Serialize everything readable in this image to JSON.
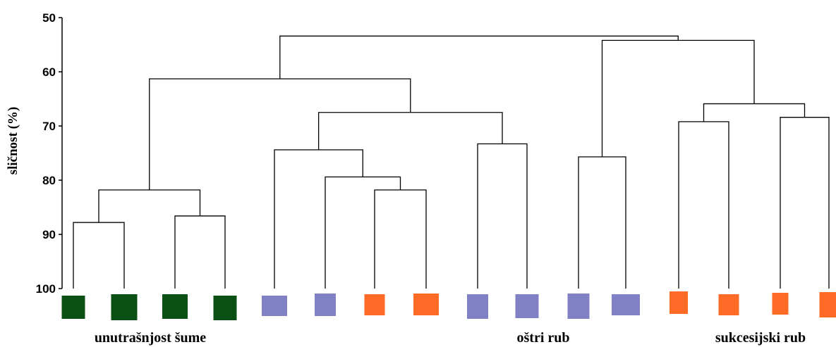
{
  "chart_data": {
    "type": "dendrogram",
    "ylabel": "sličnost (%)",
    "ylim": [
      50,
      100
    ],
    "y_ticks": [
      50,
      60,
      70,
      80,
      90,
      100
    ],
    "group_colors": {
      "unutrasnjost": "#0a4f14",
      "ostri": "#8080c4",
      "sukcesijski": "#ff6a26"
    },
    "leaves": [
      {
        "group": "unutrasnjost"
      },
      {
        "group": "unutrasnjost"
      },
      {
        "group": "unutrasnjost"
      },
      {
        "group": "unutrasnjost"
      },
      {
        "group": "ostri"
      },
      {
        "group": "ostri"
      },
      {
        "group": "sukcesijski"
      },
      {
        "group": "sukcesijski"
      },
      {
        "group": "ostri"
      },
      {
        "group": "ostri"
      },
      {
        "group": "ostri"
      },
      {
        "group": "ostri"
      },
      {
        "group": "sukcesijski"
      },
      {
        "group": "sukcesijski"
      },
      {
        "group": "sukcesijski"
      },
      {
        "group": "sukcesijski"
      }
    ],
    "merges": [
      {
        "a": "L0",
        "b": "L1",
        "height": 87.8
      },
      {
        "a": "L2",
        "b": "L3",
        "height": 86.6
      },
      {
        "a": "M0",
        "b": "M1",
        "height": 81.8
      },
      {
        "a": "L6",
        "b": "L7",
        "height": 81.8
      },
      {
        "a": "L5",
        "b": "M3",
        "height": 79.4
      },
      {
        "a": "L4",
        "b": "M4",
        "height": 74.4
      },
      {
        "a": "L8",
        "b": "L9",
        "height": 73.3
      },
      {
        "a": "M5",
        "b": "M6",
        "height": 67.5
      },
      {
        "a": "M2",
        "b": "M7",
        "height": 61.3
      },
      {
        "a": "L10",
        "b": "L11",
        "height": 75.7
      },
      {
        "a": "L12",
        "b": "L13",
        "height": 69.2
      },
      {
        "a": "L14",
        "b": "L15",
        "height": 68.4
      },
      {
        "a": "M10",
        "b": "M11",
        "height": 65.9
      },
      {
        "a": "M9",
        "b": "M12",
        "height": 54.2
      },
      {
        "a": "M8",
        "b": "M13",
        "height": 53.4
      }
    ],
    "group_labels": [
      {
        "text": "unutrašnjost šume"
      },
      {
        "text": "oštri rub"
      },
      {
        "text": "sukcesijski rub"
      }
    ]
  }
}
